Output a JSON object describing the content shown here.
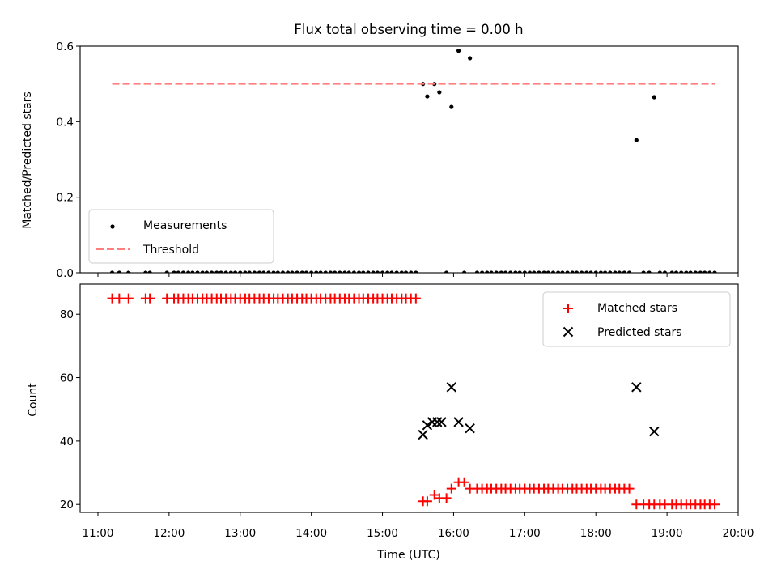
{
  "chart_data": [
    {
      "type": "scatter",
      "title": "Flux total observing time = 0.00 h",
      "xlabel": "",
      "ylabel": "Matched/Predicted stars",
      "xlim": [
        10.75,
        20.0
      ],
      "ylim": [
        0.0,
        0.6
      ],
      "yticks": [
        "0.0",
        "0.2",
        "0.4",
        "0.6"
      ],
      "legend_position": "bottom-left",
      "series": [
        {
          "name": "Measurements",
          "marker": "dot",
          "color": "#000000",
          "x": [
            11.2,
            11.3,
            11.43,
            11.67,
            11.73,
            11.97,
            12.07,
            12.13,
            12.2,
            12.27,
            12.33,
            12.4,
            12.47,
            12.53,
            12.6,
            12.67,
            12.73,
            12.8,
            12.87,
            12.93,
            13.0,
            13.07,
            13.13,
            13.2,
            13.27,
            13.33,
            13.4,
            13.47,
            13.53,
            13.6,
            13.67,
            13.73,
            13.8,
            13.87,
            13.93,
            14.0,
            14.07,
            14.13,
            14.2,
            14.27,
            14.33,
            14.4,
            14.47,
            14.53,
            14.6,
            14.67,
            14.73,
            14.8,
            14.87,
            14.93,
            15.0,
            15.07,
            15.13,
            15.2,
            15.27,
            15.33,
            15.4,
            15.47,
            15.57,
            15.63,
            15.73,
            15.8,
            15.9,
            15.97,
            16.07,
            16.15,
            16.23,
            16.33,
            16.4,
            16.47,
            16.53,
            16.6,
            16.67,
            16.73,
            16.8,
            16.87,
            16.93,
            17.0,
            17.07,
            17.13,
            17.2,
            17.27,
            17.33,
            17.4,
            17.47,
            17.53,
            17.6,
            17.67,
            17.73,
            17.8,
            17.87,
            17.93,
            18.0,
            18.07,
            18.13,
            18.2,
            18.27,
            18.33,
            18.4,
            18.47,
            18.57,
            18.67,
            18.75,
            18.82,
            18.9,
            18.97,
            19.07,
            19.13,
            19.2,
            19.27,
            19.33,
            19.4,
            19.47,
            19.53,
            19.6,
            19.67
          ],
          "y": [
            0,
            0,
            0,
            0,
            0,
            0,
            0,
            0,
            0,
            0,
            0,
            0,
            0,
            0,
            0,
            0,
            0,
            0,
            0,
            0,
            0,
            0,
            0,
            0,
            0,
            0,
            0,
            0,
            0,
            0,
            0,
            0,
            0,
            0,
            0,
            0,
            0,
            0,
            0,
            0,
            0,
            0,
            0,
            0,
            0,
            0,
            0,
            0,
            0,
            0,
            0,
            0,
            0,
            0,
            0,
            0,
            0,
            0,
            0.5,
            0.467,
            0.5,
            0.478,
            0,
            0.439,
            0.588,
            0,
            0.568,
            0,
            0,
            0,
            0,
            0,
            0,
            0,
            0,
            0,
            0,
            0,
            0,
            0,
            0,
            0,
            0,
            0,
            0,
            0,
            0,
            0,
            0,
            0,
            0,
            0,
            0,
            0,
            0,
            0,
            0,
            0,
            0,
            0,
            0.351,
            0,
            0,
            0.465,
            0,
            0,
            0,
            0,
            0,
            0,
            0,
            0,
            0,
            0,
            0,
            0
          ]
        },
        {
          "name": "Threshold",
          "type": "line",
          "style": "dashed",
          "color": "#ff7f7f",
          "x": [
            11.2,
            19.67
          ],
          "y": [
            0.5,
            0.5
          ]
        }
      ]
    },
    {
      "type": "scatter",
      "title": "",
      "xlabel": "Time (UTC)",
      "ylabel": "Count",
      "xlim": [
        10.75,
        20.0
      ],
      "ylim": [
        17.5,
        89.5
      ],
      "yticks": [
        "20",
        "40",
        "60",
        "80"
      ],
      "xticks": [
        "11:00",
        "12:00",
        "13:00",
        "14:00",
        "15:00",
        "16:00",
        "17:00",
        "18:00",
        "19:00",
        "20:00"
      ],
      "legend_position": "top-right",
      "series": [
        {
          "name": "Matched stars",
          "marker": "plus",
          "color": "#ff0000",
          "x": [
            11.2,
            11.3,
            11.43,
            11.67,
            11.73,
            11.97,
            12.07,
            12.13,
            12.2,
            12.27,
            12.33,
            12.4,
            12.47,
            12.53,
            12.6,
            12.67,
            12.73,
            12.8,
            12.87,
            12.93,
            13.0,
            13.07,
            13.13,
            13.2,
            13.27,
            13.33,
            13.4,
            13.47,
            13.53,
            13.6,
            13.67,
            13.73,
            13.8,
            13.87,
            13.93,
            14.0,
            14.07,
            14.13,
            14.2,
            14.27,
            14.33,
            14.4,
            14.47,
            14.53,
            14.6,
            14.67,
            14.73,
            14.8,
            14.87,
            14.93,
            15.0,
            15.07,
            15.13,
            15.2,
            15.27,
            15.33,
            15.4,
            15.47,
            15.57,
            15.63,
            15.73,
            15.8,
            15.9,
            15.97,
            16.07,
            16.15,
            16.23,
            16.33,
            16.4,
            16.47,
            16.53,
            16.6,
            16.67,
            16.73,
            16.8,
            16.87,
            16.93,
            17.0,
            17.07,
            17.13,
            17.2,
            17.27,
            17.33,
            17.4,
            17.47,
            17.53,
            17.6,
            17.67,
            17.73,
            17.8,
            17.87,
            17.93,
            18.0,
            18.07,
            18.13,
            18.2,
            18.27,
            18.33,
            18.4,
            18.47,
            18.57,
            18.67,
            18.75,
            18.82,
            18.9,
            18.97,
            19.07,
            19.13,
            19.2,
            19.27,
            19.33,
            19.4,
            19.47,
            19.53,
            19.6,
            19.67
          ],
          "y": [
            85,
            85,
            85,
            85,
            85,
            85,
            85,
            85,
            85,
            85,
            85,
            85,
            85,
            85,
            85,
            85,
            85,
            85,
            85,
            85,
            85,
            85,
            85,
            85,
            85,
            85,
            85,
            85,
            85,
            85,
            85,
            85,
            85,
            85,
            85,
            85,
            85,
            85,
            85,
            85,
            85,
            85,
            85,
            85,
            85,
            85,
            85,
            85,
            85,
            85,
            85,
            85,
            85,
            85,
            85,
            85,
            85,
            85,
            21,
            21,
            23,
            22,
            22,
            25,
            27,
            27,
            25,
            25,
            25,
            25,
            25,
            25,
            25,
            25,
            25,
            25,
            25,
            25,
            25,
            25,
            25,
            25,
            25,
            25,
            25,
            25,
            25,
            25,
            25,
            25,
            25,
            25,
            25,
            25,
            25,
            25,
            25,
            25,
            25,
            25,
            20,
            20,
            20,
            20,
            20,
            20,
            20,
            20,
            20,
            20,
            20,
            20,
            20,
            20,
            20,
            20
          ]
        },
        {
          "name": "Predicted stars",
          "marker": "x",
          "color": "#000000",
          "x": [
            15.57,
            15.63,
            15.7,
            15.77,
            15.83,
            15.97,
            16.07,
            16.23,
            18.57,
            18.82
          ],
          "y": [
            42,
            45,
            46,
            46,
            46,
            57,
            46,
            44,
            57,
            43
          ]
        }
      ]
    }
  ]
}
